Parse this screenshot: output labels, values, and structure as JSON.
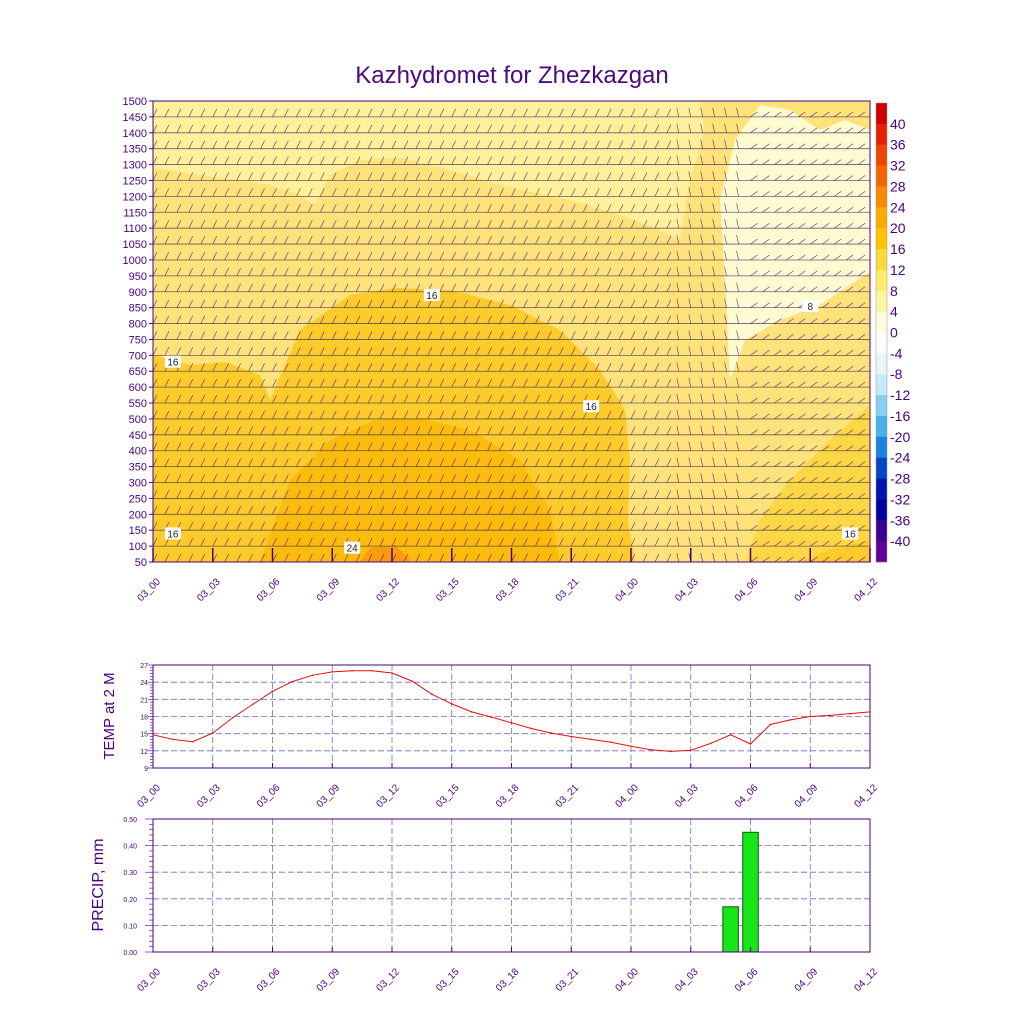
{
  "title": "Kazhydromet for Zhezkazgan",
  "colors": {
    "axis": "#4b0082",
    "grid": "#7b68c8",
    "temp_line": "#e01010",
    "precip_bar": "#19e619",
    "background": "#ffffff"
  },
  "chart_data": [
    {
      "type": "heatmap",
      "name": "cross-section",
      "x_ticks": [
        "03_00",
        "03_03",
        "03_06",
        "03_09",
        "03_12",
        "03_15",
        "03_18",
        "03_21",
        "04_00",
        "04_03",
        "04_06",
        "04_09",
        "04_12"
      ],
      "y_ticks": [
        50,
        100,
        150,
        200,
        250,
        300,
        350,
        400,
        450,
        500,
        550,
        600,
        650,
        700,
        750,
        800,
        850,
        900,
        950,
        1000,
        1050,
        1100,
        1150,
        1200,
        1250,
        1300,
        1350,
        1400,
        1450,
        1500
      ],
      "ylim": [
        50,
        1500
      ],
      "contour_labels": [
        {
          "text": "16",
          "x": "03_01",
          "y": 680
        },
        {
          "text": "16",
          "x": "03_14",
          "y": 890
        },
        {
          "text": "16",
          "x": "03_22",
          "y": 540
        },
        {
          "text": "16",
          "x": "03_01",
          "y": 140
        },
        {
          "text": "24",
          "x": "03_10",
          "y": 95
        },
        {
          "text": "8",
          "x": "04_09",
          "y": 855
        },
        {
          "text": "16",
          "x": "04_11",
          "y": 140
        }
      ],
      "colorbar": {
        "labels": [
          "40",
          "36",
          "32",
          "28",
          "24",
          "20",
          "16",
          "12",
          "8",
          "4",
          "0",
          "-4",
          "-8",
          "-12",
          "-16",
          "-20",
          "-24",
          "-28",
          "-32",
          "-36",
          "-40"
        ],
        "colors": [
          "#d10000",
          "#e82200",
          "#f04400",
          "#f56600",
          "#fa8800",
          "#fcaa00",
          "#fdc200",
          "#fdd839",
          "#feeb6b",
          "#fff69f",
          "#fffde0",
          "#ffffff",
          "#e8f6fb",
          "#c4ebf8",
          "#86d0f0",
          "#4ab1ea",
          "#1a82e0",
          "#0047c8",
          "#0014b0",
          "#0000a0",
          "#3a0090",
          "#60009a"
        ]
      }
    },
    {
      "type": "line",
      "name": "temperature",
      "ylabel": "TEMP at 2 M",
      "ylim": [
        9,
        27
      ],
      "y_ticks": [
        9,
        12,
        15,
        18,
        21,
        24,
        27
      ],
      "x_ticks": [
        "03_00",
        "03_03",
        "03_06",
        "03_09",
        "03_12",
        "03_15",
        "03_18",
        "03_21",
        "04_00",
        "04_03",
        "04_06",
        "04_09",
        "04_12"
      ],
      "x_hours": [
        0,
        1,
        2,
        3,
        4,
        5,
        6,
        7,
        8,
        9,
        10,
        11,
        12,
        13,
        14,
        15,
        16,
        17,
        18,
        19,
        20,
        21,
        22,
        23,
        24,
        25,
        26,
        27,
        28,
        29,
        30,
        31,
        32,
        33,
        34,
        35,
        36
      ],
      "values": [
        14.8,
        14.0,
        13.6,
        15.1,
        17.8,
        20.1,
        22.4,
        24.1,
        25.2,
        25.8,
        26.0,
        26.0,
        25.6,
        24.2,
        21.9,
        20.2,
        18.8,
        17.9,
        16.9,
        15.9,
        15.1,
        14.5,
        14.0,
        13.5,
        12.8,
        12.2,
        11.9,
        12.1,
        13.3,
        14.8,
        13.2,
        16.6,
        17.4,
        18.0,
        18.2,
        18.5,
        18.8
      ]
    },
    {
      "type": "bar",
      "name": "precipitation",
      "ylabel": "PRECIP, mm",
      "ylim": [
        0,
        0.5
      ],
      "y_ticks": [
        "0.00",
        "0.10",
        "0.20",
        "0.30",
        "0.40",
        "0.50"
      ],
      "x_ticks": [
        "03_00",
        "03_03",
        "03_06",
        "03_09",
        "03_12",
        "03_15",
        "03_18",
        "03_21",
        "04_00",
        "04_03",
        "04_06",
        "04_09",
        "04_12"
      ],
      "bars": [
        {
          "x_hour": 29,
          "value": 0.17
        },
        {
          "x_hour": 30,
          "value": 0.45
        }
      ]
    }
  ]
}
